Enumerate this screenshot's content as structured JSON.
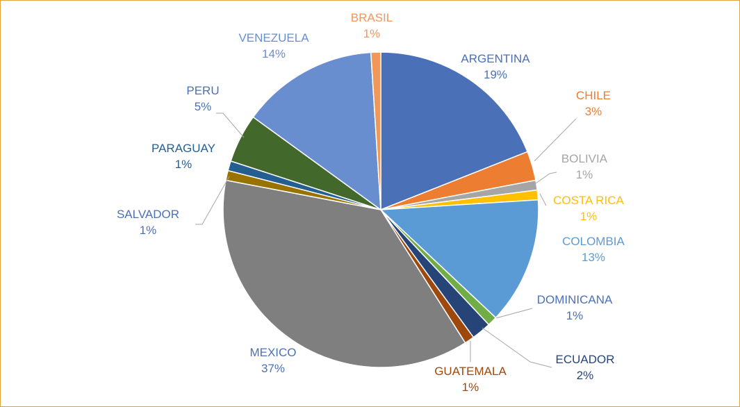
{
  "chart_data": {
    "type": "pie",
    "slices": [
      {
        "label": "ARGENTINA",
        "value": 19,
        "value_label": "19%",
        "color": "#4a70b8"
      },
      {
        "label": "CHILE",
        "value": 3,
        "value_label": "3%",
        "color": "#ed7d31"
      },
      {
        "label": "BOLIVIA",
        "value": 1,
        "value_label": "1%",
        "color": "#a5a5a5"
      },
      {
        "label": "COSTA RICA",
        "value": 1,
        "value_label": "1%",
        "color": "#ffc000"
      },
      {
        "label": "COLOMBIA",
        "value": 13,
        "value_label": "13%",
        "color": "#5b9bd5"
      },
      {
        "label": "DOMINICANA",
        "value": 1,
        "value_label": "1%",
        "color": "#70ad47"
      },
      {
        "label": "ECUADOR",
        "value": 2,
        "value_label": "2%",
        "color": "#264478"
      },
      {
        "label": "GUATEMALA",
        "value": 1,
        "value_label": "1%",
        "color": "#9e480e"
      },
      {
        "label": "MEXICO",
        "value": 37,
        "value_label": "37%",
        "color": "#7f7f80"
      },
      {
        "label": "SALVADOR",
        "value": 1,
        "value_label": "1%",
        "color": "#997300"
      },
      {
        "label": "PARAGUAY",
        "value": 1,
        "value_label": "1%",
        "color": "#255e91"
      },
      {
        "label": "PERU",
        "value": 5,
        "value_label": "5%",
        "color": "#43682b"
      },
      {
        "label": "VENEZUELA",
        "value": 14,
        "value_label": "14%",
        "color": "#698ed0"
      },
      {
        "label": "BRASIL",
        "value": 1,
        "value_label": "1%",
        "color": "#f1975a"
      }
    ],
    "label_colors": {
      "ARGENTINA": "#4a70b8",
      "CHILE": "#ed7d31",
      "BOLIVIA": "#a5a5a5",
      "COSTA RICA": "#ffc000",
      "COLOMBIA": "#5b9bd5",
      "DOMINICANA": "#4a70b8",
      "ECUADOR": "#264478",
      "GUATEMALA": "#9e480e",
      "MEXICO": "#4a70b8",
      "SALVADOR": "#4a70b8",
      "PARAGUAY": "#255e91",
      "PERU": "#4a70b8",
      "VENEZUELA": "#698ed0",
      "BRASIL": "#f1975a"
    },
    "frame_color": "#e3a33a",
    "legend": "none"
  }
}
